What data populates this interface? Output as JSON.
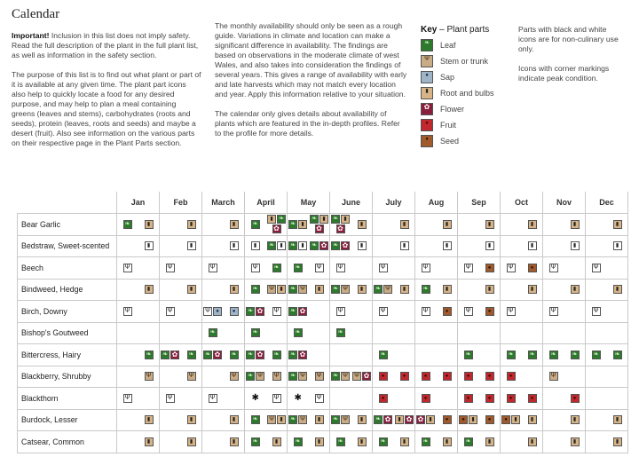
{
  "title": "Calendar",
  "col1": {
    "important_label": "Important!",
    "important_text": " Inclusion in this list does not imply safety. Read the full description of the plant in the full plant list, as well as information in the safety section.",
    "purpose_text": "The purpose of this list is to find out what plant or part of it is available at any given time. The plant part icons also help to quickly locate a food for any desired purpose, and may help to plan a meal containing greens (leaves and stems), carbohydrates (roots and seeds), protein (leaves, roots and seeds) and maybe a desert (fruit). Also see information on the various parts on their respective page in the Plant Parts section."
  },
  "col2": {
    "p1": "The monthly availability should only be seen as a rough guide. Variations in climate and location can make a significant difference in availability. The findings are based on observations in the moderate climate of west Wales, and also takes into consideration the findings of several years. This gives a range of availability with early and late harvests which may not match every location and year. Apply this information relative to your situation.",
    "p2": "The calendar only gives details about availability of plants which are featured in the in-depth profiles. Refer to the profile for more details."
  },
  "key": {
    "title_bold": "Key",
    "title_rest": " – Plant parts",
    "items": [
      {
        "label": "Leaf",
        "part": "leaf",
        "icon": "leaf-icon"
      },
      {
        "label": "Stem or trunk",
        "part": "stem",
        "icon": "stem-icon"
      },
      {
        "label": "Sap",
        "part": "sap",
        "icon": "sap-icon"
      },
      {
        "label": "Root and bulbs",
        "part": "root",
        "icon": "root-icon"
      },
      {
        "label": "Flower",
        "part": "flower",
        "icon": "flower-icon"
      },
      {
        "label": "Fruit",
        "part": "fruit",
        "icon": "fruit-icon"
      },
      {
        "label": "Seed",
        "part": "seed",
        "icon": "seed-icon"
      }
    ]
  },
  "col4": {
    "p1": "Parts with black and white icons are for non-culinary use only.",
    "p2": "Icons with corner markings indicate peak condition."
  },
  "colors": {
    "leaf": "#2e7a2c",
    "stem": "#c9ac86",
    "sap": "#9fb4c6",
    "root": "#d7b487",
    "flower": "#8a1e3d",
    "fruit": "#c1272d",
    "seed": "#a05a2c"
  },
  "calendar": {
    "months": [
      "Jan",
      "Feb",
      "March",
      "April",
      "May",
      "June",
      "July",
      "Aug",
      "Sep",
      "Oct",
      "Nov",
      "Dec"
    ],
    "plants": [
      {
        "name": "Bear Garlic",
        "cells": [
          [
            [
              "leaf"
            ],
            [
              "root"
            ]
          ],
          [
            [],
            [
              "root"
            ]
          ],
          [
            [],
            [
              "root"
            ]
          ],
          [
            [
              "leaf"
            ],
            [
              "root",
              "leaf",
              "flower"
            ]
          ],
          [
            [
              "leaf",
              "root"
            ],
            [
              "leaf",
              "root",
              "flower"
            ]
          ],
          [
            [
              "leaf",
              "root",
              "flower"
            ],
            [
              "root"
            ]
          ],
          [
            [],
            [
              "root"
            ]
          ],
          [
            [],
            [
              "root"
            ]
          ],
          [
            [],
            [
              "root"
            ]
          ],
          [
            [],
            [
              "root"
            ]
          ],
          [
            [],
            [
              "root"
            ]
          ],
          [
            [],
            [
              "root"
            ]
          ]
        ]
      },
      {
        "name": "Bedstraw, Sweet-scented",
        "cells": [
          [
            [],
            [
              "root-bw"
            ]
          ],
          [
            [],
            [
              "root-bw"
            ]
          ],
          [
            [],
            [
              "root-bw"
            ]
          ],
          [
            [
              "root-bw"
            ],
            [
              "leaf",
              "root-bw"
            ]
          ],
          [
            [
              "leaf",
              "root-bw"
            ],
            [
              "leaf",
              "flower"
            ]
          ],
          [
            [
              "leaf",
              "flower"
            ],
            [
              "root-bw"
            ]
          ],
          [
            [],
            [
              "root-bw"
            ]
          ],
          [
            [],
            [
              "root-bw"
            ]
          ],
          [
            [],
            [
              "root-bw"
            ]
          ],
          [
            [],
            [
              "root-bw"
            ]
          ],
          [
            [],
            [
              "root-bw"
            ]
          ],
          [
            [],
            [
              "root-bw"
            ]
          ]
        ]
      },
      {
        "name": "Beech",
        "cells": [
          [
            [
              "stem-bw"
            ],
            []
          ],
          [
            [
              "stem-bw"
            ],
            []
          ],
          [
            [
              "stem-bw"
            ],
            []
          ],
          [
            [
              "stem-bw"
            ],
            [
              "leaf"
            ]
          ],
          [
            [
              "leaf"
            ],
            [
              "stem-bw"
            ]
          ],
          [
            [
              "stem-bw"
            ],
            []
          ],
          [
            [
              "stem-bw"
            ],
            []
          ],
          [
            [
              "stem-bw"
            ],
            []
          ],
          [
            [
              "stem-bw"
            ],
            [
              "seed"
            ]
          ],
          [
            [
              "stem-bw"
            ],
            [
              "seed"
            ]
          ],
          [
            [
              "stem-bw"
            ],
            []
          ],
          [
            [
              "stem-bw"
            ],
            []
          ]
        ]
      },
      {
        "name": "Bindweed, Hedge",
        "cells": [
          [
            [],
            [
              "root"
            ]
          ],
          [
            [],
            [
              "root"
            ]
          ],
          [
            [],
            [
              "root"
            ]
          ],
          [
            [
              "leaf"
            ],
            [
              "stem",
              "root"
            ]
          ],
          [
            [
              "leaf",
              "stem"
            ],
            [
              "root"
            ]
          ],
          [
            [
              "leaf",
              "stem"
            ],
            [
              "root"
            ]
          ],
          [
            [
              "leaf",
              "stem"
            ],
            [
              "root"
            ]
          ],
          [
            [
              "leaf"
            ],
            [
              "root"
            ]
          ],
          [
            [],
            [
              "root"
            ]
          ],
          [
            [],
            [
              "root"
            ]
          ],
          [
            [],
            [
              "root"
            ]
          ],
          [
            [],
            [
              "root"
            ]
          ]
        ]
      },
      {
        "name": "Birch, Downy",
        "cells": [
          [
            [
              "stem-bw"
            ],
            []
          ],
          [
            [
              "stem-bw"
            ],
            []
          ],
          [
            [
              "stem-bw",
              "sap"
            ],
            [
              "sap"
            ]
          ],
          [
            [
              "leaf",
              "flower"
            ],
            [
              "stem-bw"
            ]
          ],
          [
            [
              "leaf",
              "flower"
            ],
            []
          ],
          [
            [
              "stem-bw"
            ],
            []
          ],
          [
            [
              "stem-bw"
            ],
            []
          ],
          [
            [
              "stem-bw"
            ],
            [
              "seed"
            ]
          ],
          [
            [
              "stem-bw"
            ],
            [
              "seed"
            ]
          ],
          [
            [
              "stem-bw"
            ],
            []
          ],
          [
            [
              "stem-bw"
            ],
            []
          ],
          [
            [
              "stem-bw"
            ],
            []
          ]
        ]
      },
      {
        "name": "Bishop's Goutweed",
        "cells": [
          [
            [],
            []
          ],
          [
            [],
            []
          ],
          [
            [
              "leaf"
            ],
            []
          ],
          [
            [
              "leaf"
            ],
            []
          ],
          [
            [
              "leaf"
            ],
            []
          ],
          [
            [
              "leaf"
            ],
            []
          ],
          [
            [],
            []
          ],
          [
            [],
            []
          ],
          [
            [],
            []
          ],
          [
            [],
            []
          ],
          [
            [],
            []
          ],
          [
            [],
            []
          ]
        ]
      },
      {
        "name": "Bittercress, Hairy",
        "cells": [
          [
            [],
            [
              "leaf"
            ]
          ],
          [
            [
              "leaf",
              "flower"
            ],
            [
              "leaf"
            ]
          ],
          [
            [
              "leaf",
              "flower"
            ],
            [
              "leaf"
            ]
          ],
          [
            [
              "leaf",
              "flower"
            ],
            [
              "leaf"
            ]
          ],
          [
            [
              "leaf",
              "flower"
            ],
            []
          ],
          [
            [],
            []
          ],
          [
            [
              "leaf"
            ],
            []
          ],
          [
            [],
            []
          ],
          [
            [
              "leaf"
            ],
            []
          ],
          [
            [
              "leaf"
            ],
            [
              "leaf"
            ]
          ],
          [
            [
              "leaf"
            ],
            [
              "leaf"
            ]
          ],
          [
            [
              "leaf"
            ],
            [
              "leaf"
            ]
          ]
        ]
      },
      {
        "name": "Blackberry, Shrubby",
        "cells": [
          [
            [],
            [
              "stem"
            ]
          ],
          [
            [],
            [
              "stem"
            ]
          ],
          [
            [],
            [
              "stem"
            ]
          ],
          [
            [
              "leaf",
              "stem"
            ],
            [
              "stem"
            ]
          ],
          [
            [
              "leaf",
              "stem"
            ],
            [
              "stem"
            ]
          ],
          [
            [
              "leaf",
              "stem"
            ],
            [
              "stem",
              "flower"
            ]
          ],
          [
            [
              "fruit"
            ],
            [
              "fruit"
            ]
          ],
          [
            [
              "fruit"
            ],
            [
              "fruit"
            ]
          ],
          [
            [
              "fruit"
            ],
            [
              "fruit"
            ]
          ],
          [
            [
              "fruit"
            ],
            []
          ],
          [
            [
              "stem"
            ],
            []
          ],
          [
            [],
            []
          ]
        ]
      },
      {
        "name": "Blackthorn",
        "cells": [
          [
            [
              "stem-bw"
            ],
            []
          ],
          [
            [
              "stem-bw"
            ],
            []
          ],
          [
            [
              "stem-bw"
            ],
            []
          ],
          [
            [
              "flower-bw"
            ],
            [
              "stem-bw"
            ]
          ],
          [
            [
              "flower-bw"
            ],
            [
              "stem-bw"
            ]
          ],
          [
            [],
            []
          ],
          [
            [
              "fruit"
            ],
            []
          ],
          [
            [
              "fruit"
            ],
            []
          ],
          [
            [
              "fruit"
            ],
            [
              "fruit"
            ]
          ],
          [
            [
              "fruit"
            ],
            [
              "fruit"
            ]
          ],
          [
            [],
            [
              "fruit"
            ]
          ],
          [
            [],
            []
          ]
        ]
      },
      {
        "name": "Burdock, Lesser",
        "cells": [
          [
            [],
            [
              "root"
            ]
          ],
          [
            [],
            [
              "root"
            ]
          ],
          [
            [],
            [
              "root"
            ]
          ],
          [
            [
              "leaf"
            ],
            [
              "stem",
              "root"
            ]
          ],
          [
            [
              "leaf",
              "stem"
            ],
            [
              "root"
            ]
          ],
          [
            [
              "leaf",
              "stem"
            ],
            [
              "root"
            ]
          ],
          [
            [
              "leaf",
              "flower"
            ],
            [
              "root",
              "flower"
            ]
          ],
          [
            [
              "flower",
              "root"
            ],
            [
              "seed"
            ]
          ],
          [
            [
              "seed",
              "root"
            ],
            [
              "seed"
            ]
          ],
          [
            [
              "seed",
              "root"
            ],
            [
              "root"
            ]
          ],
          [
            [],
            [
              "root"
            ]
          ],
          [
            [],
            [
              "root"
            ]
          ]
        ]
      },
      {
        "name": "Catsear, Common",
        "cells": [
          [
            [],
            [
              "root"
            ]
          ],
          [
            [],
            [
              "root"
            ]
          ],
          [
            [],
            [
              "root"
            ]
          ],
          [
            [
              "leaf"
            ],
            [
              "root"
            ]
          ],
          [
            [
              "leaf"
            ],
            [
              "root"
            ]
          ],
          [
            [
              "leaf"
            ],
            [
              "root"
            ]
          ],
          [
            [
              "leaf"
            ],
            [
              "root"
            ]
          ],
          [
            [
              "leaf"
            ],
            [
              "root"
            ]
          ],
          [
            [
              "leaf"
            ],
            [
              "root"
            ]
          ],
          [
            [],
            [
              "root"
            ]
          ],
          [
            [],
            [
              "root"
            ]
          ],
          [
            [],
            [
              "root"
            ]
          ]
        ]
      }
    ]
  }
}
